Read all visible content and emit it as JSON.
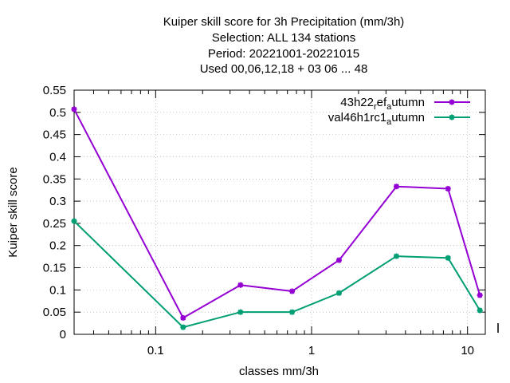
{
  "chart_data": {
    "type": "line",
    "title_lines": [
      "Kuiper skill score  for 3h Precipitation (mm/3h)",
      "Selection: ALL     134 stations",
      "Period: 20221001-20221015",
      "Used  00,06,12,18  + 03 06 ... 48"
    ],
    "xlabel": "classes mm/3h",
    "ylabel": "Kuiper skill score",
    "x_scale": "log",
    "xlim": [
      0.03,
      13
    ],
    "ylim": [
      0,
      0.55
    ],
    "x_tick_labels": [
      "0.1",
      "1",
      "10"
    ],
    "y_tick_labels": [
      "0",
      "0.05",
      "0.1",
      "0.15",
      "0.2",
      "0.25",
      "0.3",
      "0.35",
      "0.4",
      "0.45",
      "0.5",
      "0.55"
    ],
    "grid": true,
    "legend_position": "top-right",
    "series": [
      {
        "name": "43h22",
        "name_sub1": "r",
        "name_mid": "ef",
        "name_sub2": "a",
        "name_end": "utumn",
        "color": "#9400d3",
        "x": [
          0.03,
          0.15,
          0.35,
          0.75,
          1.5,
          3.5,
          7.5,
          12
        ],
        "values": [
          0.507,
          0.037,
          0.111,
          0.097,
          0.167,
          0.333,
          0.328,
          0.088
        ]
      },
      {
        "name": "val46h1rc1",
        "name_sub1": "",
        "name_mid": "",
        "name_sub2": "a",
        "name_end": "utumn",
        "color": "#009e73",
        "x": [
          0.03,
          0.15,
          0.35,
          0.75,
          1.5,
          3.5,
          7.5,
          12
        ],
        "values": [
          0.255,
          0.016,
          0.05,
          0.05,
          0.093,
          0.176,
          0.172,
          0.054
        ]
      }
    ]
  }
}
